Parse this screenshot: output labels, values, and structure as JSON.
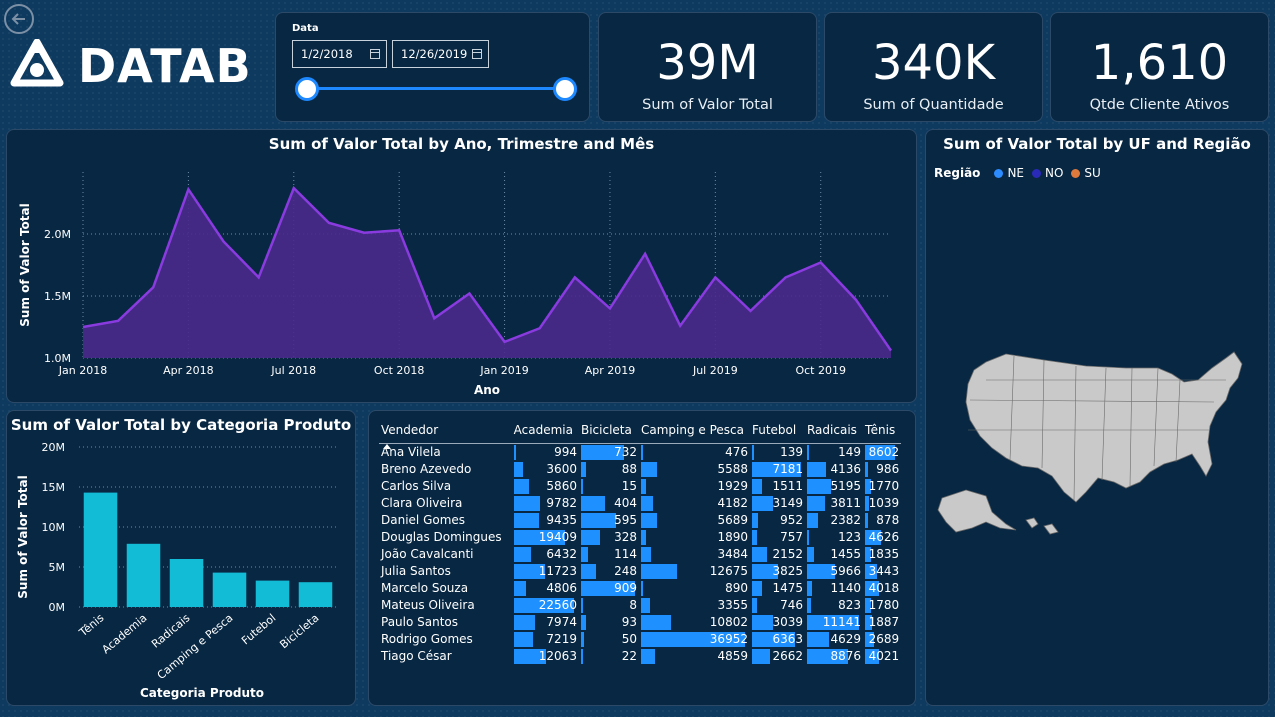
{
  "header": {
    "logo_text": "DATAB",
    "back_icon": "arrow-left-icon"
  },
  "date_filter": {
    "label": "Data",
    "start": "1/2/2018",
    "end": "12/26/2019"
  },
  "kpis": [
    {
      "value": "39M",
      "label": "Sum of Valor Total"
    },
    {
      "value": "340K",
      "label": "Sum of Quantidade"
    },
    {
      "value": "1,610",
      "label": "Qtde Cliente Ativos"
    }
  ],
  "line_chart": {
    "title": "Sum of Valor Total by Ano, Trimestre and Mês",
    "xlabel": "Ano",
    "ylabel": "Sum of Valor Total",
    "color": "#8a3be0"
  },
  "bar_chart": {
    "title": "Sum of Valor Total by Categoria Produto",
    "xlabel": "Categoria Produto",
    "ylabel": "Sum of Valor Total",
    "color": "#12bcd6"
  },
  "map": {
    "title": "Sum of Valor Total by UF and Região",
    "legend_title": "Região",
    "legend": [
      {
        "name": "NE",
        "color": "#2d8cff"
      },
      {
        "name": "NO",
        "color": "#2a2ab8"
      },
      {
        "name": "SU",
        "color": "#e07a3c"
      }
    ]
  },
  "chart_data": [
    {
      "type": "area",
      "title": "Sum of Valor Total by Ano, Trimestre and Mês",
      "xlabel": "Ano",
      "ylabel": "Sum of Valor Total",
      "x_ticks": [
        "Jan 2018",
        "Apr 2018",
        "Jul 2018",
        "Oct 2018",
        "Jan 2019",
        "Apr 2019",
        "Jul 2019",
        "Oct 2019"
      ],
      "y_ticks": [
        "1.0M",
        "1.5M",
        "2.0M"
      ],
      "ylim": [
        1000000,
        2500000
      ],
      "x": [
        "Jan 2018",
        "Feb 2018",
        "Mar 2018",
        "Apr 2018",
        "May 2018",
        "Jun 2018",
        "Jul 2018",
        "Aug 2018",
        "Sep 2018",
        "Oct 2018",
        "Nov 2018",
        "Dec 2018",
        "Jan 2019",
        "Feb 2019",
        "Mar 2019",
        "Apr 2019",
        "May 2019",
        "Jun 2019",
        "Jul 2019",
        "Aug 2019",
        "Sep 2019",
        "Oct 2019",
        "Nov 2019",
        "Dec 2019"
      ],
      "values": [
        1250000,
        1300000,
        1570000,
        2360000,
        1940000,
        1650000,
        2370000,
        2090000,
        2010000,
        2030000,
        1320000,
        1520000,
        1130000,
        1240000,
        1650000,
        1400000,
        1840000,
        1260000,
        1650000,
        1380000,
        1650000,
        1770000,
        1470000,
        1060000
      ]
    },
    {
      "type": "bar",
      "title": "Sum of Valor Total by Categoria Produto",
      "xlabel": "Categoria Produto",
      "ylabel": "Sum of Valor Total",
      "y_ticks": [
        "0M",
        "5M",
        "10M",
        "15M",
        "20M"
      ],
      "ylim": [
        0,
        20000000
      ],
      "categories": [
        "Tênis",
        "Academia",
        "Radicais",
        "Camping e Pesca",
        "Futebol",
        "Bicicleta"
      ],
      "values": [
        14300000,
        7900000,
        6000000,
        4300000,
        3300000,
        3100000
      ]
    },
    {
      "type": "table",
      "columns": [
        "Vendedor",
        "Academia",
        "Bicicleta",
        "Camping e Pesca",
        "Futebol",
        "Radicais",
        "Tênis"
      ],
      "rows": [
        [
          "Ana Vilela",
          994,
          732,
          476,
          139,
          149,
          8602
        ],
        [
          "Breno Azevedo",
          3600,
          88,
          5588,
          7181,
          4136,
          986
        ],
        [
          "Carlos Silva",
          5860,
          15,
          1929,
          1511,
          5195,
          1770
        ],
        [
          "Clara Oliveira",
          9782,
          404,
          4182,
          3149,
          3811,
          1039
        ],
        [
          "Daniel Gomes",
          9435,
          595,
          5689,
          952,
          2382,
          878
        ],
        [
          "Douglas Domingues",
          19409,
          328,
          1890,
          757,
          123,
          4626
        ],
        [
          "João Cavalcanti",
          6432,
          114,
          3484,
          2152,
          1455,
          1835
        ],
        [
          "Julia Santos",
          11723,
          248,
          12675,
          3825,
          5966,
          3443
        ],
        [
          "Marcelo Souza",
          4806,
          909,
          890,
          1475,
          1140,
          4018
        ],
        [
          "Mateus Oliveira",
          22560,
          8,
          3355,
          746,
          823,
          1780
        ],
        [
          "Paulo Santos",
          7974,
          93,
          10802,
          3039,
          11141,
          1887
        ],
        [
          "Rodrigo Gomes",
          7219,
          50,
          36952,
          6363,
          4629,
          2689
        ],
        [
          "Tiago César",
          12063,
          22,
          4859,
          2662,
          8876,
          4021
        ]
      ]
    }
  ]
}
